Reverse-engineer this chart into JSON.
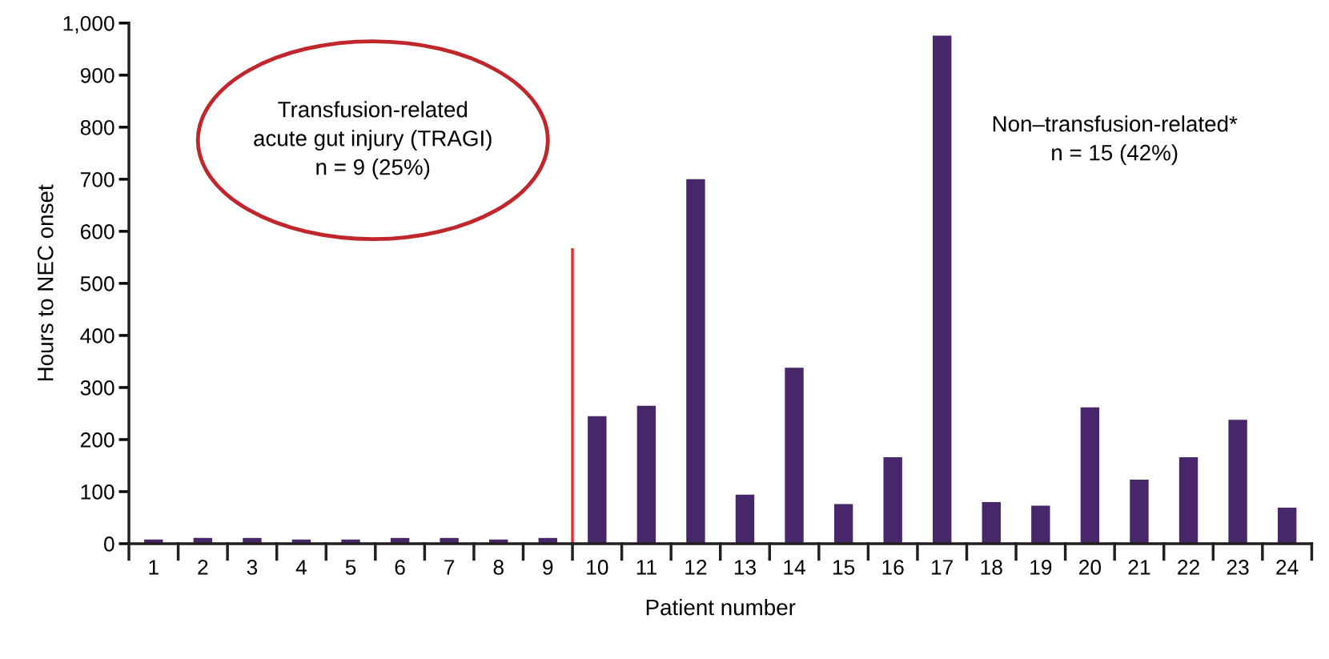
{
  "chart_data": {
    "type": "bar",
    "xlabel": "Patient number",
    "ylabel": "Hours to NEC onset",
    "x": [
      1,
      2,
      3,
      4,
      5,
      6,
      7,
      8,
      9,
      10,
      11,
      12,
      13,
      14,
      15,
      16,
      17,
      18,
      19,
      20,
      21,
      22,
      23,
      24
    ],
    "values": [
      8,
      11,
      11,
      8,
      8,
      11,
      11,
      8,
      11,
      245,
      265,
      700,
      94,
      338,
      76,
      166,
      976,
      80,
      73,
      262,
      123,
      166,
      238,
      69
    ],
    "color": "#48266a",
    "xlim": [
      0.5,
      24.5
    ],
    "xticks": [
      1,
      2,
      3,
      4,
      5,
      6,
      7,
      8,
      9,
      10,
      11,
      12,
      13,
      14,
      15,
      16,
      17,
      18,
      19,
      20,
      21,
      22,
      23,
      24
    ],
    "ylim": [
      0,
      1000
    ],
    "yticks": [
      0,
      100,
      200,
      300,
      400,
      500,
      600,
      700,
      800,
      900,
      {
        "value": 1000,
        "label": "1,000"
      }
    ],
    "ref_lines": [
      {
        "axis": "x",
        "value": 9.5,
        "color": "#ee2a2e"
      }
    ],
    "annotations": [
      "Transfusion-related\nacute gut injury (TRAGI)\nn = 9 (25%)",
      "Non–transfusion-related*\nn = 15 (42%)"
    ],
    "grid": false
  }
}
